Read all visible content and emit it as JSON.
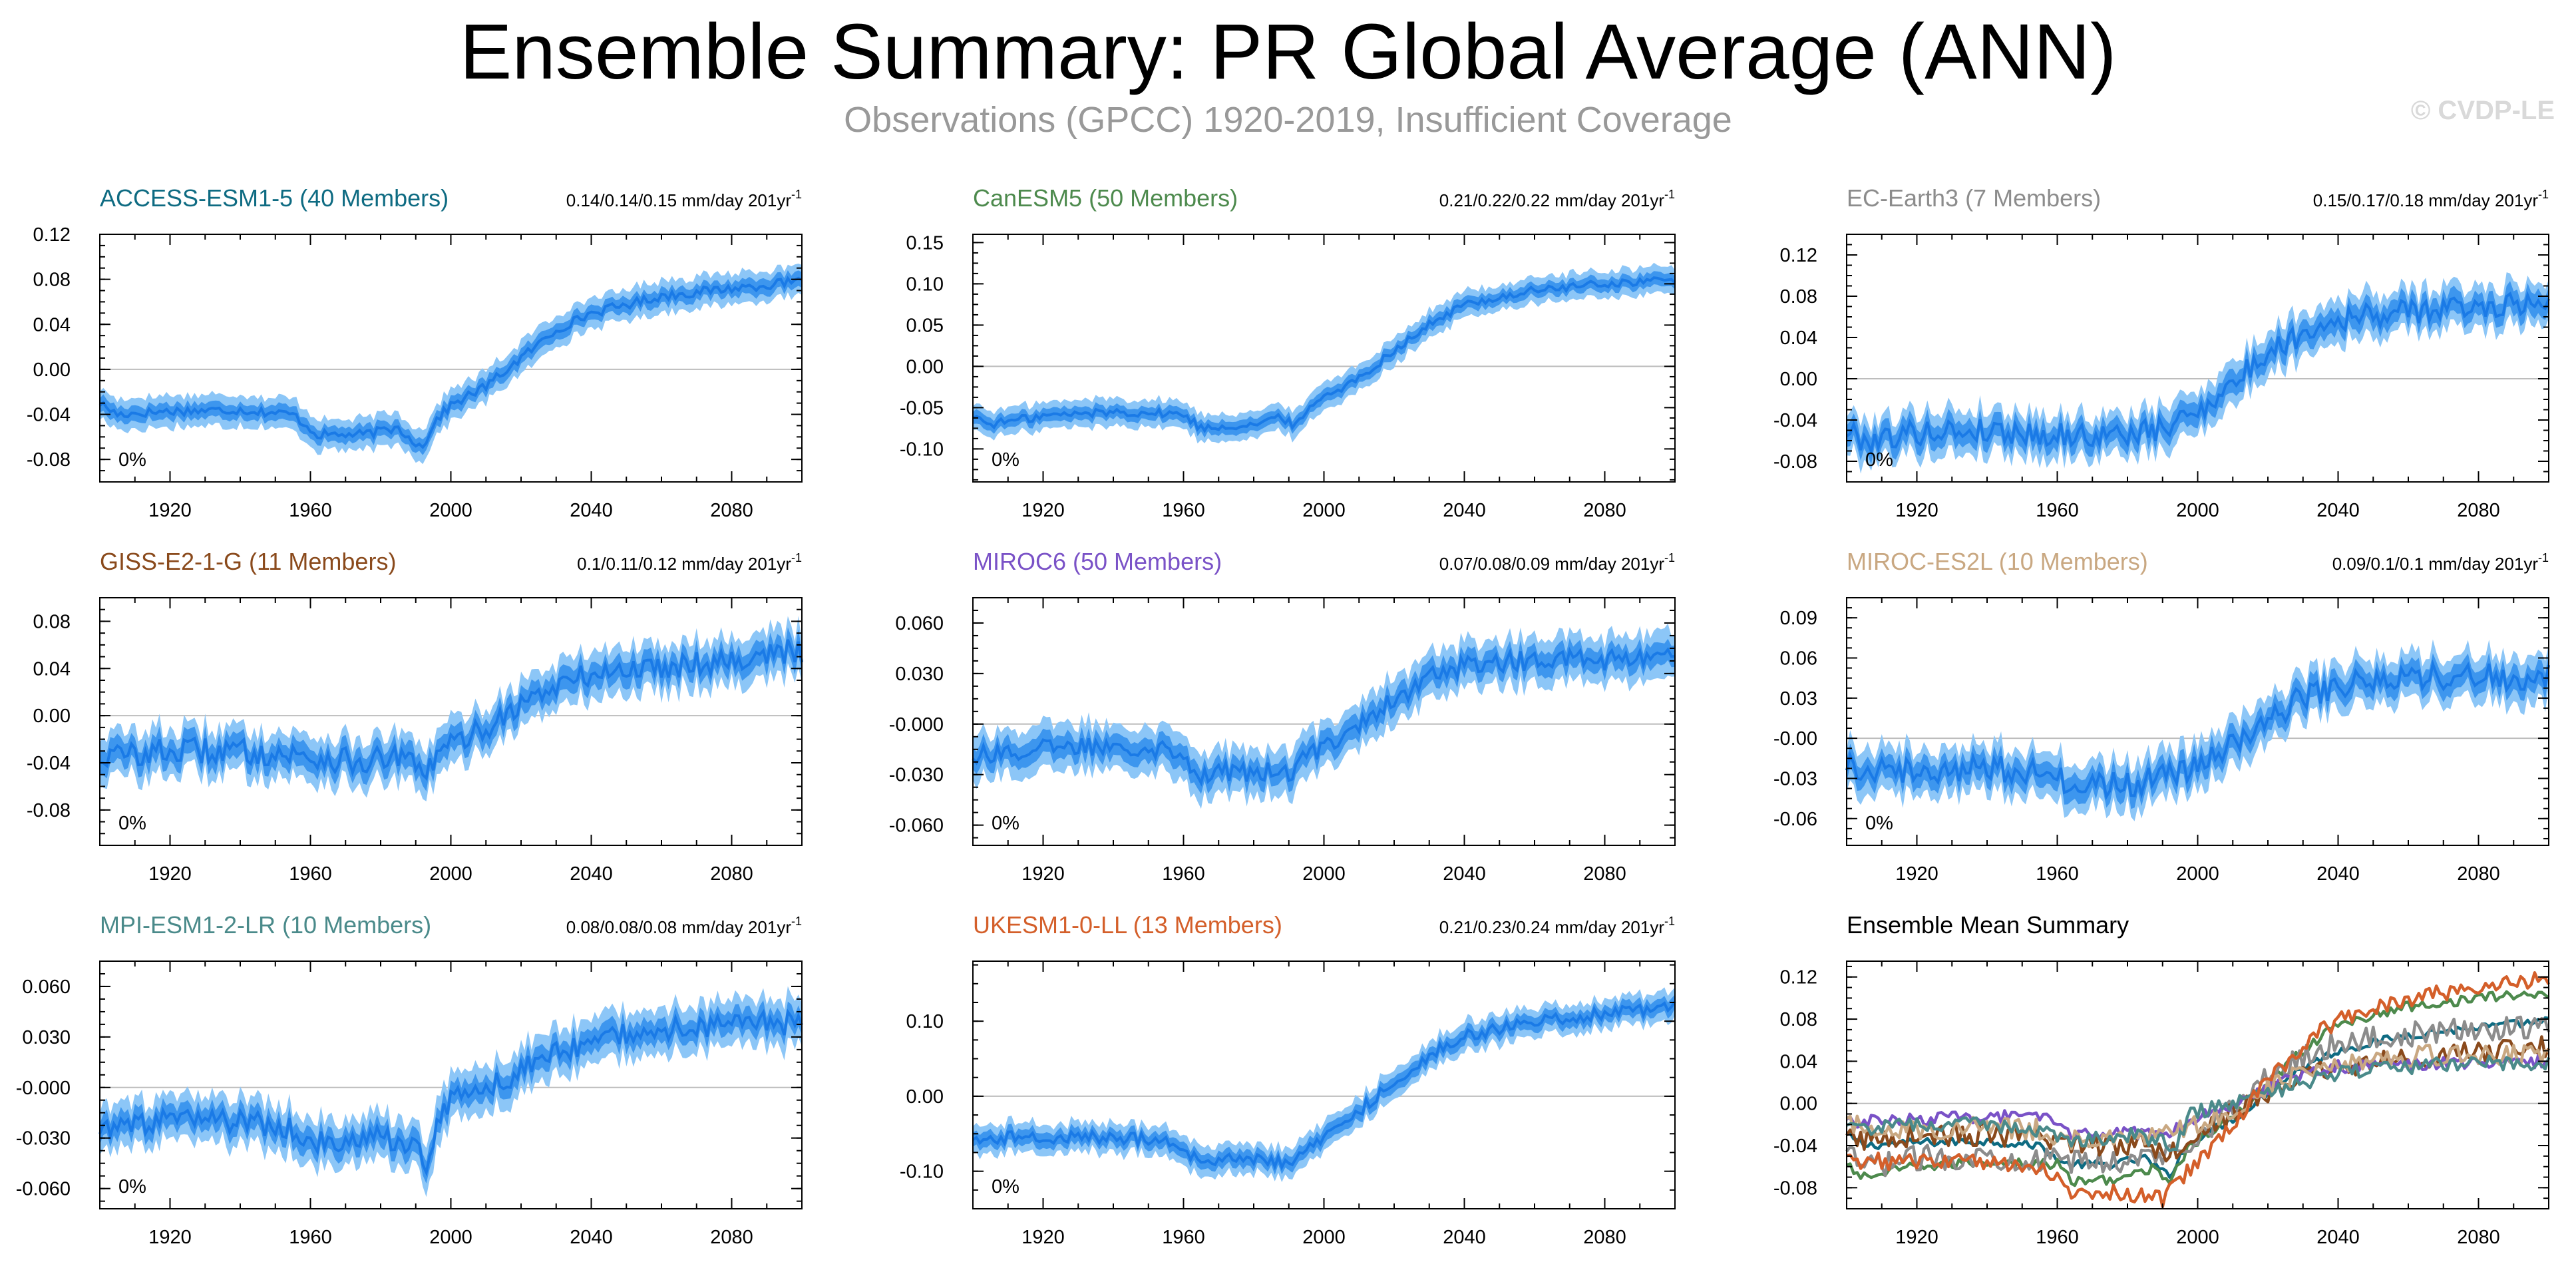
{
  "title": "Ensemble Summary: PR Global Average (ANN)",
  "subtitle": "Observations (GPCC) 1920-2019, Insufficient Coverage",
  "copyright": "© CVDP-LE",
  "colors": {
    "mean_line": "#1a7ae6",
    "spread_inner": "#3d96ee",
    "spread_outer": "#8cc6f7",
    "zero_line": "#bdbdbd"
  },
  "chart_data": [
    {
      "type": "line",
      "id": "access",
      "title": "ACCESS-ESM1-5 (40 Members)",
      "title_color": "#0e6b82",
      "trend_text": "0.14/0.14/0.15 mm/day 201yr",
      "trend_sup": "-1",
      "pct_label": "0%",
      "x_range": [
        1900,
        2100
      ],
      "xticks": [
        1920,
        1960,
        2000,
        2040,
        2080
      ],
      "y_range": [
        -0.1,
        0.12
      ],
      "yticks": [
        0.12,
        0.08,
        0.04,
        0.0,
        -0.04,
        -0.08
      ],
      "ytick_labels": [
        "0.12",
        "0.08",
        "0.04",
        "0.00",
        "-0.04",
        "-0.08"
      ],
      "mean": [
        [
          1900,
          -0.03
        ],
        [
          1905,
          -0.04
        ],
        [
          1920,
          -0.037
        ],
        [
          1940,
          -0.036
        ],
        [
          1955,
          -0.04
        ],
        [
          1962,
          -0.058
        ],
        [
          1975,
          -0.058
        ],
        [
          1985,
          -0.052
        ],
        [
          1992,
          -0.07
        ],
        [
          1995,
          -0.048
        ],
        [
          2000,
          -0.032
        ],
        [
          2010,
          -0.015
        ],
        [
          2020,
          0.01
        ],
        [
          2030,
          0.035
        ],
        [
          2040,
          0.05
        ],
        [
          2060,
          0.065
        ],
        [
          2080,
          0.072
        ],
        [
          2100,
          0.078
        ]
      ],
      "inner": 0.006,
      "outer": 0.012,
      "noise": 0.004
    },
    {
      "type": "line",
      "id": "canesm5",
      "title": "CanESM5 (50 Members)",
      "title_color": "#4d8a4d",
      "trend_text": "0.21/0.22/0.22 mm/day 201yr",
      "trend_sup": "-1",
      "pct_label": "0%",
      "x_range": [
        1900,
        2100
      ],
      "xticks": [
        1920,
        1960,
        2000,
        2040,
        2080
      ],
      "y_range": [
        -0.14,
        0.16
      ],
      "yticks": [
        0.15,
        0.1,
        0.05,
        0.0,
        -0.05,
        -0.1
      ],
      "ytick_labels": [
        "0.15",
        "0.10",
        "0.05",
        "0.00",
        "-0.05",
        "-0.10"
      ],
      "mean": [
        [
          1900,
          -0.06
        ],
        [
          1905,
          -0.07
        ],
        [
          1920,
          -0.06
        ],
        [
          1940,
          -0.055
        ],
        [
          1960,
          -0.058
        ],
        [
          1965,
          -0.075
        ],
        [
          1980,
          -0.07
        ],
        [
          1988,
          -0.062
        ],
        [
          1992,
          -0.072
        ],
        [
          1998,
          -0.04
        ],
        [
          2010,
          -0.015
        ],
        [
          2020,
          0.02
        ],
        [
          2030,
          0.05
        ],
        [
          2040,
          0.075
        ],
        [
          2060,
          0.092
        ],
        [
          2080,
          0.1
        ],
        [
          2100,
          0.105
        ]
      ],
      "inner": 0.007,
      "outer": 0.014,
      "noise": 0.005
    },
    {
      "type": "line",
      "id": "ecearth3",
      "title": "EC-Earth3 (7 Members)",
      "title_color": "#8c8c8c",
      "trend_text": "0.15/0.17/0.18 mm/day 201yr",
      "trend_sup": "-1",
      "pct_label": "0%",
      "x_range": [
        1900,
        2100
      ],
      "xticks": [
        1920,
        1960,
        2000,
        2040,
        2080
      ],
      "y_range": [
        -0.1,
        0.14
      ],
      "yticks": [
        0.12,
        0.08,
        0.04,
        0.0,
        -0.04,
        -0.08
      ],
      "ytick_labels": [
        "0.12",
        "0.08",
        "0.04",
        "0.00",
        "-0.04",
        "-0.08"
      ],
      "mean": [
        [
          1900,
          -0.05
        ],
        [
          1905,
          -0.06
        ],
        [
          1920,
          -0.052
        ],
        [
          1940,
          -0.05
        ],
        [
          1960,
          -0.055
        ],
        [
          1975,
          -0.055
        ],
        [
          1990,
          -0.05
        ],
        [
          2000,
          -0.03
        ],
        [
          2010,
          -0.005
        ],
        [
          2020,
          0.025
        ],
        [
          2030,
          0.045
        ],
        [
          2040,
          0.058
        ],
        [
          2060,
          0.065
        ],
        [
          2080,
          0.07
        ],
        [
          2100,
          0.075
        ]
      ],
      "inner": 0.01,
      "outer": 0.018,
      "noise": 0.012
    },
    {
      "type": "line",
      "id": "giss",
      "title": "GISS-E2-1-G (11 Members)",
      "title_color": "#8a4a1c",
      "trend_text": "0.1/0.11/0.12 mm/day 201yr",
      "trend_sup": "-1",
      "pct_label": "0%",
      "x_range": [
        1900,
        2100
      ],
      "xticks": [
        1920,
        1960,
        2000,
        2040,
        2080
      ],
      "y_range": [
        -0.11,
        0.1
      ],
      "yticks": [
        0.08,
        0.04,
        0.0,
        -0.04,
        -0.08
      ],
      "ytick_labels": [
        "0.08",
        "0.04",
        "0.00",
        "-0.04",
        "-0.08"
      ],
      "mean": [
        [
          1900,
          -0.035
        ],
        [
          1920,
          -0.03
        ],
        [
          1940,
          -0.03
        ],
        [
          1960,
          -0.035
        ],
        [
          1975,
          -0.04
        ],
        [
          1985,
          -0.035
        ],
        [
          1992,
          -0.048
        ],
        [
          2000,
          -0.025
        ],
        [
          2010,
          -0.01
        ],
        [
          2020,
          0.01
        ],
        [
          2030,
          0.025
        ],
        [
          2040,
          0.035
        ],
        [
          2060,
          0.042
        ],
        [
          2080,
          0.048
        ],
        [
          2100,
          0.055
        ]
      ],
      "inner": 0.009,
      "outer": 0.017,
      "noise": 0.011
    },
    {
      "type": "line",
      "id": "miroc6",
      "title": "MIROC6 (50 Members)",
      "title_color": "#7a52c7",
      "trend_text": "0.07/0.08/0.09 mm/day 201yr",
      "trend_sup": "-1",
      "pct_label": "0%",
      "x_range": [
        1900,
        2100
      ],
      "xticks": [
        1920,
        1960,
        2000,
        2040,
        2080
      ],
      "y_range": [
        -0.072,
        0.075
      ],
      "yticks": [
        0.06,
        0.03,
        0.0,
        -0.03,
        -0.06
      ],
      "ytick_labels": [
        "0.060",
        "0.030",
        "-0.000",
        "-0.030",
        "-0.060"
      ],
      "mean": [
        [
          1900,
          -0.018
        ],
        [
          1920,
          -0.015
        ],
        [
          1940,
          -0.012
        ],
        [
          1958,
          -0.015
        ],
        [
          1965,
          -0.03
        ],
        [
          1980,
          -0.028
        ],
        [
          1990,
          -0.03
        ],
        [
          1995,
          -0.02
        ],
        [
          2000,
          -0.012
        ],
        [
          2010,
          0.0
        ],
        [
          2020,
          0.015
        ],
        [
          2030,
          0.028
        ],
        [
          2040,
          0.035
        ],
        [
          2060,
          0.038
        ],
        [
          2080,
          0.038
        ],
        [
          2100,
          0.04
        ]
      ],
      "inner": 0.006,
      "outer": 0.012,
      "noise": 0.006
    },
    {
      "type": "line",
      "id": "mirocEs2l",
      "title": "MIROC-ES2L (10 Members)",
      "title_color": "#c9a882",
      "trend_text": "0.09/0.1/0.1 mm/day 201yr",
      "trend_sup": "-1",
      "pct_label": "0%",
      "x_range": [
        1900,
        2100
      ],
      "xticks": [
        1920,
        1960,
        2000,
        2040,
        2080
      ],
      "y_range": [
        -0.08,
        0.105
      ],
      "yticks": [
        0.09,
        0.06,
        0.03,
        0.0,
        -0.03,
        -0.06
      ],
      "ytick_labels": [
        "0.09",
        "0.06",
        "0.03",
        "-0.00",
        "-0.03",
        "-0.06"
      ],
      "mean": [
        [
          1900,
          -0.02
        ],
        [
          1920,
          -0.025
        ],
        [
          1940,
          -0.022
        ],
        [
          1955,
          -0.025
        ],
        [
          1965,
          -0.035
        ],
        [
          1980,
          -0.035
        ],
        [
          1990,
          -0.03
        ],
        [
          2000,
          -0.02
        ],
        [
          2010,
          -0.005
        ],
        [
          2020,
          0.015
        ],
        [
          2030,
          0.03
        ],
        [
          2040,
          0.04
        ],
        [
          2060,
          0.045
        ],
        [
          2080,
          0.047
        ],
        [
          2100,
          0.045
        ]
      ],
      "inner": 0.008,
      "outer": 0.015,
      "noise": 0.01
    },
    {
      "type": "line",
      "id": "mpi",
      "title": "MPI-ESM1-2-LR (10 Members)",
      "title_color": "#4a8a8a",
      "trend_text": "0.08/0.08/0.08 mm/day 201yr",
      "trend_sup": "-1",
      "pct_label": "0%",
      "x_range": [
        1900,
        2100
      ],
      "xticks": [
        1920,
        1960,
        2000,
        2040,
        2080
      ],
      "y_range": [
        -0.072,
        0.075
      ],
      "yticks": [
        0.06,
        0.03,
        0.0,
        -0.03,
        -0.06
      ],
      "ytick_labels": [
        "0.060",
        "0.030",
        "-0.000",
        "-0.030",
        "-0.060"
      ],
      "mean": [
        [
          1900,
          -0.025
        ],
        [
          1920,
          -0.02
        ],
        [
          1940,
          -0.02
        ],
        [
          1955,
          -0.025
        ],
        [
          1965,
          -0.035
        ],
        [
          1980,
          -0.03
        ],
        [
          1990,
          -0.035
        ],
        [
          1993,
          -0.045
        ],
        [
          1998,
          -0.01
        ],
        [
          2010,
          0.0
        ],
        [
          2020,
          0.01
        ],
        [
          2030,
          0.02
        ],
        [
          2040,
          0.028
        ],
        [
          2060,
          0.035
        ],
        [
          2080,
          0.038
        ],
        [
          2100,
          0.038
        ]
      ],
      "inner": 0.006,
      "outer": 0.012,
      "noise": 0.007
    },
    {
      "type": "line",
      "id": "ukesm",
      "title": "UKESM1-0-LL (13 Members)",
      "title_color": "#d45f2a",
      "trend_text": "0.21/0.23/0.24 mm/day 201yr",
      "trend_sup": "-1",
      "pct_label": "0%",
      "x_range": [
        1900,
        2100
      ],
      "xticks": [
        1920,
        1960,
        2000,
        2040,
        2080
      ],
      "y_range": [
        -0.15,
        0.18
      ],
      "yticks": [
        0.1,
        0.0,
        -0.1
      ],
      "ytick_labels": [
        "0.10",
        "0.00",
        "-0.10"
      ],
      "mean": [
        [
          1900,
          -0.055
        ],
        [
          1920,
          -0.055
        ],
        [
          1940,
          -0.055
        ],
        [
          1955,
          -0.06
        ],
        [
          1965,
          -0.085
        ],
        [
          1980,
          -0.085
        ],
        [
          1990,
          -0.09
        ],
        [
          2000,
          -0.055
        ],
        [
          2010,
          -0.02
        ],
        [
          2020,
          0.02
        ],
        [
          2030,
          0.055
        ],
        [
          2040,
          0.08
        ],
        [
          2060,
          0.1
        ],
        [
          2080,
          0.11
        ],
        [
          2100,
          0.12
        ]
      ],
      "inner": 0.009,
      "outer": 0.017,
      "noise": 0.008
    },
    {
      "type": "line",
      "id": "summary",
      "title": "Ensemble Mean Summary",
      "title_color": "#000000",
      "x_range": [
        1900,
        2100
      ],
      "xticks": [
        1920,
        1960,
        2000,
        2040,
        2080
      ],
      "y_range": [
        -0.1,
        0.135
      ],
      "yticks": [
        0.12,
        0.08,
        0.04,
        0.0,
        -0.04,
        -0.08
      ],
      "ytick_labels": [
        "0.12",
        "0.08",
        "0.04",
        "0.00",
        "-0.04",
        "-0.08"
      ],
      "series": [
        {
          "name": "ACCESS-ESM1-5",
          "color": "#0e6b82",
          "ref": "access"
        },
        {
          "name": "CanESM5",
          "color": "#4d8a4d",
          "ref": "canesm5"
        },
        {
          "name": "EC-Earth3",
          "color": "#8c8c8c",
          "ref": "ecearth3"
        },
        {
          "name": "GISS-E2-1-G",
          "color": "#8a4a1c",
          "ref": "giss"
        },
        {
          "name": "MIROC6",
          "color": "#7a52c7",
          "ref": "miroc6"
        },
        {
          "name": "MIROC-ES2L",
          "color": "#c9a882",
          "ref": "mirocEs2l"
        },
        {
          "name": "MPI-ESM1-2-LR",
          "color": "#4a8a8a",
          "ref": "mpi"
        },
        {
          "name": "UKESM1-0-LL",
          "color": "#d45f2a",
          "ref": "ukesm"
        }
      ]
    }
  ]
}
